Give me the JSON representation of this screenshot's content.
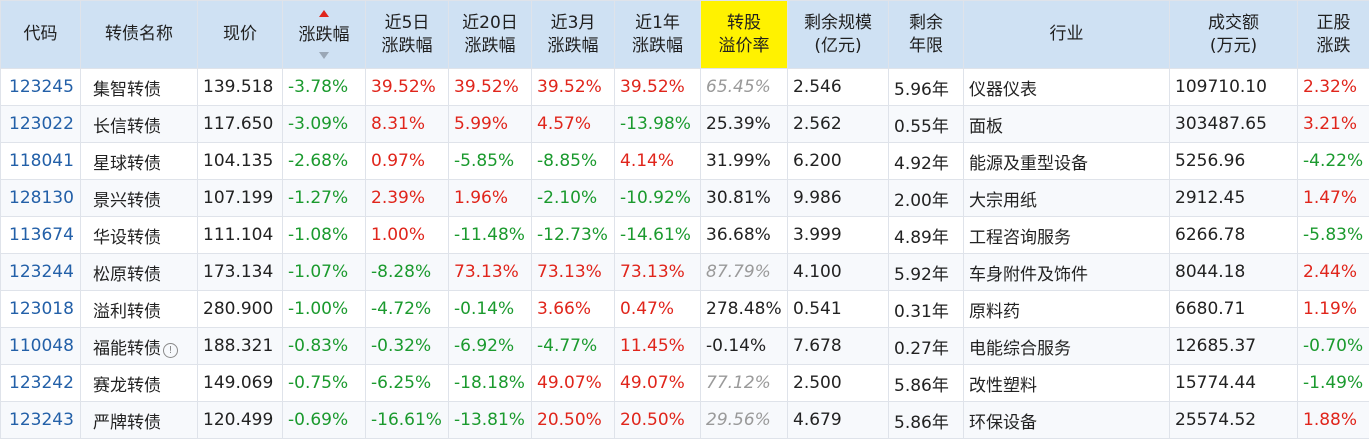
{
  "headers": {
    "code": "代码",
    "name": "转债名称",
    "price": "现价",
    "change": "涨跌幅",
    "chg5d_1": "近5日",
    "chg5d_2": "涨跌幅",
    "chg20d_1": "近20日",
    "chg20d_2": "涨跌幅",
    "chg3m_1": "近3月",
    "chg3m_2": "涨跌幅",
    "chg1y_1": "近1年",
    "chg1y_2": "涨跌幅",
    "premium_1": "转股",
    "premium_2": "溢价率",
    "scale_1": "剩余规模",
    "scale_2": "(亿元)",
    "term_1": "剩余",
    "term_2": "年限",
    "industry": "行业",
    "turnover_1": "成交额",
    "turnover_2": "(万元)",
    "stock_1": "正股",
    "stock_2": "涨跌"
  },
  "sort": {
    "column": "change",
    "direction": "asc",
    "colors": {
      "active": "#e0251b",
      "inactive": "#9aa7b6"
    }
  },
  "colors": {
    "up": "#e0251b",
    "down": "#1b9a2e",
    "header_bg": "#cfe1f3",
    "highlight": "#fff200",
    "code": "#2360a8"
  },
  "rows": [
    {
      "code": "123245",
      "name": "集智转债",
      "info_icon": false,
      "price": "139.518",
      "change": "-3.78%",
      "chg5d": "39.52%",
      "chg20d": "39.52%",
      "chg3m": "39.52%",
      "chg1y": "39.52%",
      "premium": "65.45%",
      "premium_muted": true,
      "scale": "2.546",
      "term": "5.96年",
      "industry": "仪器仪表",
      "turnover": "109710.10",
      "stock": "2.32%"
    },
    {
      "code": "123022",
      "name": "长信转债",
      "info_icon": false,
      "price": "117.650",
      "change": "-3.09%",
      "chg5d": "8.31%",
      "chg20d": "5.99%",
      "chg3m": "4.57%",
      "chg1y": "-13.98%",
      "premium": "25.39%",
      "premium_muted": false,
      "scale": "2.562",
      "term": "0.55年",
      "industry": "面板",
      "turnover": "303487.65",
      "stock": "3.21%"
    },
    {
      "code": "118041",
      "name": "星球转债",
      "info_icon": false,
      "price": "104.135",
      "change": "-2.68%",
      "chg5d": "0.97%",
      "chg20d": "-5.85%",
      "chg3m": "-8.85%",
      "chg1y": "4.14%",
      "premium": "31.99%",
      "premium_muted": false,
      "scale": "6.200",
      "term": "4.92年",
      "industry": "能源及重型设备",
      "turnover": "5256.96",
      "stock": "-4.22%"
    },
    {
      "code": "128130",
      "name": "景兴转债",
      "info_icon": false,
      "price": "107.199",
      "change": "-1.27%",
      "chg5d": "2.39%",
      "chg20d": "1.96%",
      "chg3m": "-2.10%",
      "chg1y": "-10.92%",
      "premium": "30.81%",
      "premium_muted": false,
      "scale": "9.986",
      "term": "2.00年",
      "industry": "大宗用纸",
      "turnover": "2912.45",
      "stock": "1.47%"
    },
    {
      "code": "113674",
      "name": "华设转债",
      "info_icon": false,
      "price": "111.104",
      "change": "-1.08%",
      "chg5d": "1.00%",
      "chg20d": "-11.48%",
      "chg3m": "-12.73%",
      "chg1y": "-14.61%",
      "premium": "36.68%",
      "premium_muted": false,
      "scale": "3.999",
      "term": "4.89年",
      "industry": "工程咨询服务",
      "turnover": "6266.78",
      "stock": "-5.83%"
    },
    {
      "code": "123244",
      "name": "松原转债",
      "info_icon": false,
      "price": "173.134",
      "change": "-1.07%",
      "chg5d": "-8.28%",
      "chg20d": "73.13%",
      "chg3m": "73.13%",
      "chg1y": "73.13%",
      "premium": "87.79%",
      "premium_muted": true,
      "scale": "4.100",
      "term": "5.92年",
      "industry": "车身附件及饰件",
      "turnover": "8044.18",
      "stock": "2.44%"
    },
    {
      "code": "123018",
      "name": "溢利转债",
      "info_icon": false,
      "price": "280.900",
      "change": "-1.00%",
      "chg5d": "-4.72%",
      "chg20d": "-0.14%",
      "chg3m": "3.66%",
      "chg1y": "0.47%",
      "premium": "278.48%",
      "premium_muted": false,
      "scale": "0.541",
      "term": "0.31年",
      "industry": "原料药",
      "turnover": "6680.71",
      "stock": "1.19%"
    },
    {
      "code": "110048",
      "name": "福能转债",
      "info_icon": true,
      "price": "188.321",
      "change": "-0.83%",
      "chg5d": "-0.32%",
      "chg20d": "-6.92%",
      "chg3m": "-4.77%",
      "chg1y": "11.45%",
      "premium": "-0.14%",
      "premium_muted": false,
      "scale": "7.678",
      "term": "0.27年",
      "industry": "电能综合服务",
      "turnover": "12685.37",
      "stock": "-0.70%"
    },
    {
      "code": "123242",
      "name": "赛龙转债",
      "info_icon": false,
      "price": "149.069",
      "change": "-0.75%",
      "chg5d": "-6.25%",
      "chg20d": "-18.18%",
      "chg3m": "49.07%",
      "chg1y": "49.07%",
      "premium": "77.12%",
      "premium_muted": true,
      "scale": "2.500",
      "term": "5.86年",
      "industry": "改性塑料",
      "turnover": "15774.44",
      "stock": "-1.49%"
    },
    {
      "code": "123243",
      "name": "严牌转债",
      "info_icon": false,
      "price": "120.499",
      "change": "-0.69%",
      "chg5d": "-16.61%",
      "chg20d": "-13.81%",
      "chg3m": "20.50%",
      "chg1y": "20.50%",
      "premium": "29.56%",
      "premium_muted": true,
      "scale": "4.679",
      "term": "5.86年",
      "industry": "环保设备",
      "turnover": "25574.52",
      "stock": "1.88%"
    }
  ]
}
